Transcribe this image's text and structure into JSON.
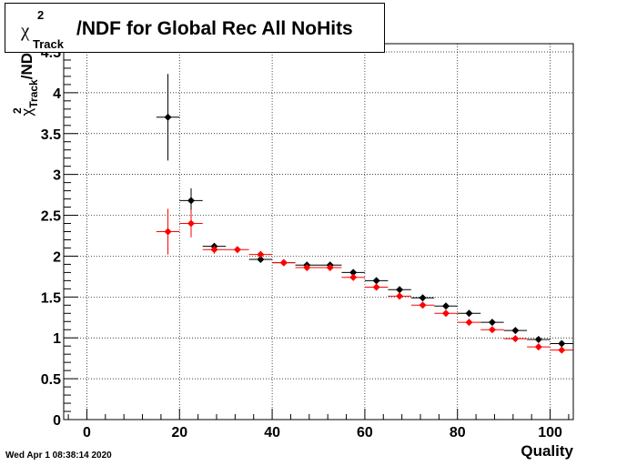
{
  "chart_data": {
    "type": "scatter",
    "title": {
      "symbol": "χ",
      "superscript": "2",
      "subscript": "Track",
      "text": "/NDF for Global Rec All NoHits"
    },
    "xlabel": "Quality",
    "ylabel": {
      "symbol": "χ",
      "superscript": "2",
      "subscript": "Track",
      "text": "/ND"
    },
    "xlim": [
      -5,
      105
    ],
    "ylim": [
      0,
      4.6
    ],
    "xticks": [
      0,
      20,
      40,
      60,
      80,
      100
    ],
    "yticks": [
      0,
      0.5,
      1,
      1.5,
      2,
      2.5,
      3,
      3.5,
      4,
      4.5
    ],
    "grid": true,
    "x_error_half_width": 2.5,
    "series": [
      {
        "color": "#000000",
        "points": [
          {
            "x": 17.5,
            "y": 3.7,
            "yerr": 0.53
          },
          {
            "x": 22.5,
            "y": 2.68,
            "yerr": 0.15
          },
          {
            "x": 27.5,
            "y": 2.12,
            "yerr": 0.04
          },
          {
            "x": 37.5,
            "y": 1.96,
            "yerr": 0.02
          },
          {
            "x": 42.5,
            "y": 1.92,
            "yerr": 0.02
          },
          {
            "x": 47.5,
            "y": 1.89,
            "yerr": 0.02
          },
          {
            "x": 52.5,
            "y": 1.89,
            "yerr": 0.02
          },
          {
            "x": 57.5,
            "y": 1.8,
            "yerr": 0.02
          },
          {
            "x": 62.5,
            "y": 1.7,
            "yerr": 0.02
          },
          {
            "x": 67.5,
            "y": 1.59,
            "yerr": 0.02
          },
          {
            "x": 72.5,
            "y": 1.49,
            "yerr": 0.02
          },
          {
            "x": 77.5,
            "y": 1.39,
            "yerr": 0.02
          },
          {
            "x": 82.5,
            "y": 1.3,
            "yerr": 0.02
          },
          {
            "x": 87.5,
            "y": 1.19,
            "yerr": 0.02
          },
          {
            "x": 92.5,
            "y": 1.09,
            "yerr": 0.02
          },
          {
            "x": 97.5,
            "y": 0.98,
            "yerr": 0.02
          },
          {
            "x": 102.5,
            "y": 0.93,
            "yerr": 0.02
          }
        ]
      },
      {
        "color": "#ff0000",
        "points": [
          {
            "x": 17.5,
            "y": 2.3,
            "yerr": 0.28
          },
          {
            "x": 22.5,
            "y": 2.4,
            "yerr": 0.17
          },
          {
            "x": 27.5,
            "y": 2.08,
            "yerr": 0.05
          },
          {
            "x": 32.5,
            "y": 2.08,
            "yerr": 0.03
          },
          {
            "x": 37.5,
            "y": 2.02,
            "yerr": 0.02
          },
          {
            "x": 42.5,
            "y": 1.92,
            "yerr": 0.02
          },
          {
            "x": 47.5,
            "y": 1.86,
            "yerr": 0.02
          },
          {
            "x": 52.5,
            "y": 1.86,
            "yerr": 0.02
          },
          {
            "x": 57.5,
            "y": 1.74,
            "yerr": 0.02
          },
          {
            "x": 62.5,
            "y": 1.62,
            "yerr": 0.02
          },
          {
            "x": 67.5,
            "y": 1.51,
            "yerr": 0.02
          },
          {
            "x": 72.5,
            "y": 1.4,
            "yerr": 0.02
          },
          {
            "x": 77.5,
            "y": 1.3,
            "yerr": 0.02
          },
          {
            "x": 82.5,
            "y": 1.19,
            "yerr": 0.02
          },
          {
            "x": 87.5,
            "y": 1.1,
            "yerr": 0.02
          },
          {
            "x": 92.5,
            "y": 0.99,
            "yerr": 0.02
          },
          {
            "x": 97.5,
            "y": 0.89,
            "yerr": 0.02
          },
          {
            "x": 102.5,
            "y": 0.85,
            "yerr": 0.02
          }
        ]
      }
    ]
  },
  "footer": {
    "timestamp": "Wed Apr  1 08:38:14 2020"
  }
}
